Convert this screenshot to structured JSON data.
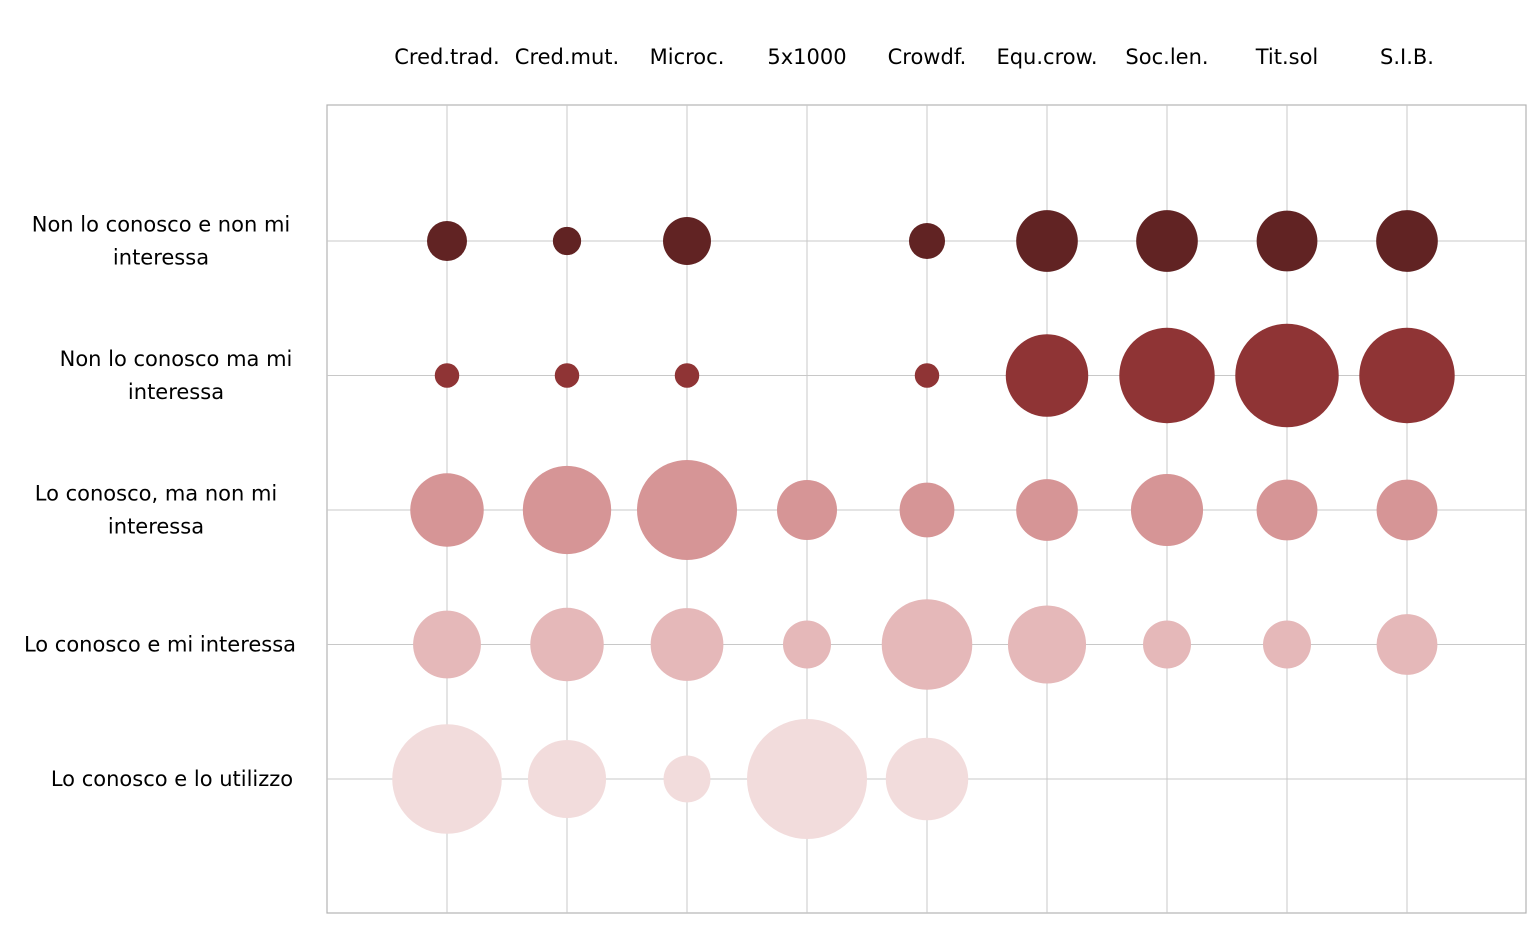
{
  "chart_data": {
    "type": "bubble",
    "title": "",
    "xlabel": "",
    "ylabel": "",
    "grid": true,
    "legend": "none",
    "x_categories": [
      "Cred.trad.",
      "Cred.mut.",
      "Microc.",
      "5x1000",
      "Crowdf.",
      "Equ.crow.",
      "Soc.len.",
      "Tit.sol",
      "S.I.B."
    ],
    "y_categories": [
      "Non lo conosco e non mi interessa",
      "Non lo conosco ma mi interessa",
      "Lo conosco, ma non mi interessa",
      "Lo conosco e mi interessa",
      "Lo conosco e lo utilizzo"
    ],
    "series": [
      {
        "name": "Non lo conosco e non mi interessa",
        "color": "#612323",
        "values": [
          16,
          8,
          23,
          0,
          13,
          38,
          38,
          37,
          38
        ]
      },
      {
        "name": "Non lo conosco ma mi interessa",
        "color": "#8f3435",
        "values": [
          6,
          6,
          6,
          0,
          6,
          68,
          91,
          107,
          91
        ]
      },
      {
        "name": "Lo conosco, ma non mi interessa",
        "color": "#d69596",
        "values": [
          54,
          78,
          100,
          36,
          30,
          38,
          52,
          37,
          37
        ]
      },
      {
        "name": "Lo conosco e mi interessa",
        "color": "#e5b8b9",
        "values": [
          46,
          54,
          53,
          23,
          82,
          61,
          23,
          23,
          37
        ]
      },
      {
        "name": "Lo conosco e lo utilizzo",
        "color": "#f2dcdc",
        "values": [
          120,
          61,
          22,
          144,
          68,
          0,
          0,
          0,
          0
        ]
      }
    ]
  }
}
